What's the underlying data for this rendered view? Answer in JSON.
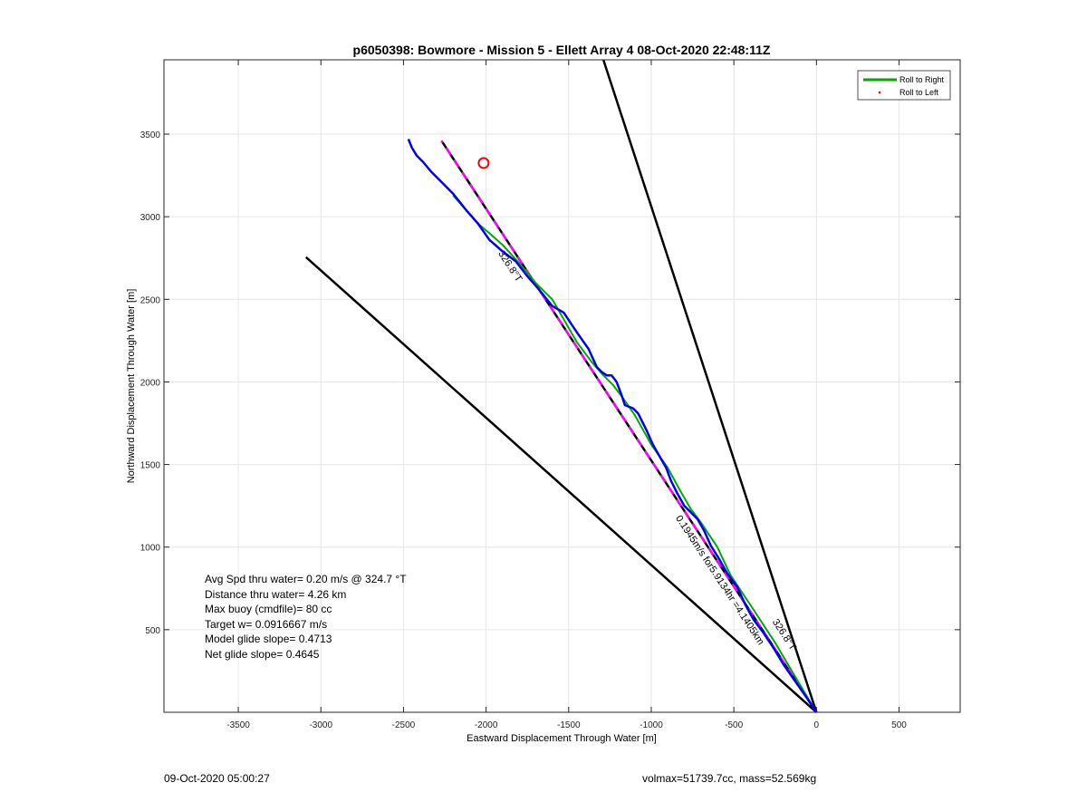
{
  "chart_data": {
    "type": "line",
    "title": "p6050398: Bowmore - Mission 5 - Ellett Array 4 08-Oct-2020 22:48:11Z",
    "xlabel": "Eastward Displacement Through Water [m]",
    "ylabel": "Northward Displacement Through Water [m]",
    "xlim": [
      -3950,
      870
    ],
    "ylim": [
      0,
      3950
    ],
    "xticks": [
      -3500,
      -3000,
      -2500,
      -2000,
      -1500,
      -1000,
      -500,
      0,
      500
    ],
    "yticks": [
      500,
      1000,
      1500,
      2000,
      2500,
      3000,
      3500
    ],
    "grid": true,
    "legend": {
      "position": "top-right",
      "entries": [
        {
          "label": "Roll to Right",
          "color": "#00aa00",
          "style": "line"
        },
        {
          "label": "Roll to Left",
          "color": "#ff0000",
          "style": "dot"
        }
      ]
    },
    "series": [
      {
        "name": "Roll to Right",
        "color": "#00aa00",
        "x": [
          0,
          -120,
          -250,
          -380,
          -520,
          -600,
          -700,
          -760,
          -830,
          -900,
          -1000,
          -1100,
          -1170,
          -1230,
          -1290,
          -1360,
          -1450,
          -1600,
          -1700,
          -1800,
          -1900,
          -1980,
          -2050,
          -2130,
          -2200
        ],
        "y": [
          0,
          200,
          420,
          620,
          830,
          1000,
          1150,
          1230,
          1350,
          1480,
          1620,
          1800,
          1900,
          1980,
          2040,
          2120,
          2240,
          2500,
          2600,
          2720,
          2830,
          2900,
          2960,
          3050,
          3130
        ]
      },
      {
        "name": "",
        "color": "#0000ee",
        "x": [
          0,
          -60,
          -130,
          -200,
          -260,
          -320,
          -380,
          -430,
          -480,
          -540,
          -590,
          -640,
          -680,
          -720,
          -760,
          -800,
          -840,
          -880,
          -910,
          -950,
          -990,
          -1030,
          -1080,
          -1110,
          -1160,
          -1180,
          -1210,
          -1240,
          -1270,
          -1300,
          -1330,
          -1380,
          -1450,
          -1530,
          -1600,
          -1680,
          -1750,
          -1820,
          -1900,
          -1980,
          -2050,
          -2120,
          -2200,
          -2270,
          -2330,
          -2380,
          -2420,
          -2450,
          -2470
        ],
        "y": [
          0,
          90,
          190,
          290,
          390,
          480,
          560,
          650,
          760,
          840,
          930,
          1010,
          1100,
          1170,
          1210,
          1250,
          1320,
          1400,
          1480,
          1550,
          1620,
          1710,
          1810,
          1840,
          1860,
          1920,
          2000,
          2040,
          2040,
          2060,
          2090,
          2200,
          2300,
          2420,
          2460,
          2560,
          2640,
          2730,
          2790,
          2860,
          2960,
          3040,
          3140,
          3210,
          3270,
          3330,
          3370,
          3420,
          3470
        ]
      }
    ],
    "reference_lines": [
      {
        "x": [
          0,
          -3090
        ],
        "y": [
          0,
          2755
        ],
        "color": "#000000"
      },
      {
        "x": [
          0,
          -1290
        ],
        "y": [
          0,
          3950
        ],
        "color": "#000000"
      }
    ],
    "target_line": {
      "x": [
        0,
        -2270
      ],
      "y": [
        0,
        3460
      ],
      "color": "#000000",
      "dash_color": "#ff00ff"
    },
    "target_marker": {
      "x": -2015,
      "y": 3325,
      "color": "#ff0000"
    },
    "annotations": [
      {
        "text": "326.8°T",
        "x": -1870,
        "y": 2690,
        "angle": 56.7
      },
      {
        "text": "0.1945m/s for5.9134hr =4.1405km",
        "x": -600,
        "y": 790,
        "angle": 56.7
      },
      {
        "text": "326.8°T",
        "x": -210,
        "y": 460,
        "angle": 56.7
      }
    ]
  },
  "stats": {
    "avg_speed": "Avg Spd thru water=  0.20 m/s @ 324.7 °T",
    "distance": "Distance thru water=  4.26 km",
    "max_buoy": "Max buoy (cmdfile)= 80 cc",
    "target_w": "Target w= 0.0916667 m/s",
    "model_glide": "Model glide slope= 0.4713",
    "net_glide": "Net glide slope= 0.4645"
  },
  "footer": {
    "timestamp": "09-Oct-2020 05:00:27",
    "volume_mass": "volmax=51739.7cc, mass=52.569kg"
  }
}
